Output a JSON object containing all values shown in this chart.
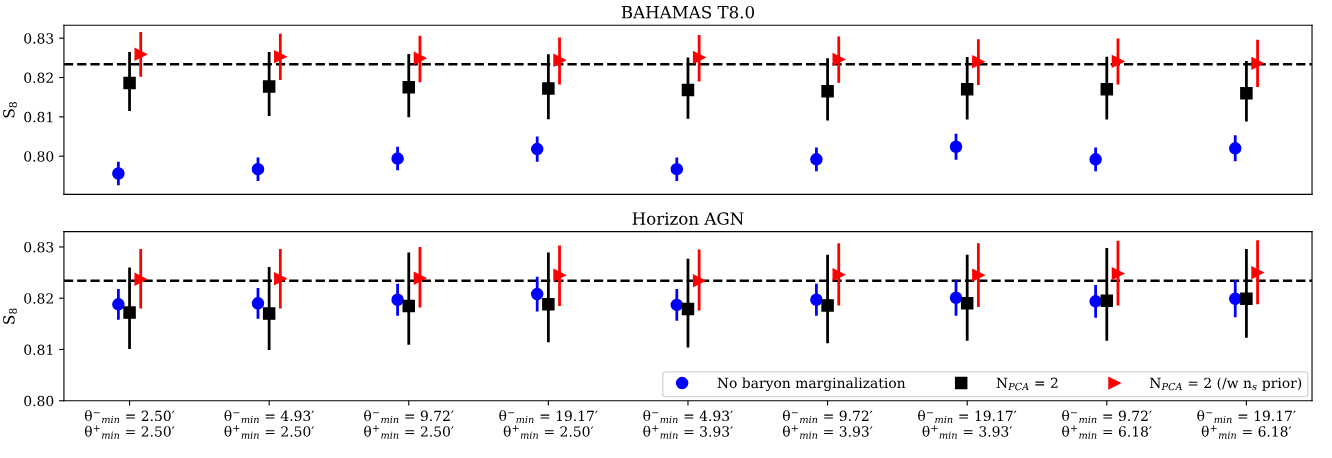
{
  "chart_data": [
    {
      "type": "scatter",
      "title": "BAHAMAS T8.0",
      "ylabel": "S$_{8}$",
      "categories": [
        null,
        null,
        null,
        null,
        null,
        null,
        null,
        null,
        null
      ],
      "series": [
        {
          "color": "#0000ff",
          "marker": "circle",
          "values": [
            0.7956,
            0.7967,
            0.7994,
            0.8018,
            0.7967,
            0.7992,
            0.8024,
            0.7992,
            0.802
          ],
          "errors": [
            0.003,
            0.003,
            0.003,
            0.0032,
            0.003,
            0.003,
            0.0033,
            0.003,
            0.0033
          ]
        },
        {
          "color": "#000000",
          "marker": "square",
          "values": [
            0.8186,
            0.8177,
            0.8175,
            0.8172,
            0.8168,
            0.8165,
            0.817,
            0.817,
            0.816
          ],
          "errors": [
            [
              0.8115,
              0.8265
            ],
            [
              0.8102,
              0.8265
            ],
            [
              0.8099,
              0.826
            ],
            [
              0.8094,
              0.8259
            ],
            [
              0.8095,
              0.8251
            ],
            [
              0.8091,
              0.8249
            ],
            [
              0.8093,
              0.8252
            ],
            [
              0.8093,
              0.8253
            ],
            [
              0.8088,
              0.8242
            ]
          ]
        },
        {
          "color": "#ff0000",
          "marker": "triangle",
          "values": [
            0.8259,
            0.8253,
            0.8249,
            0.8244,
            0.8251,
            0.8246,
            0.824,
            0.8241,
            0.8236
          ],
          "errors": [
            [
              0.8202,
              0.8316
            ],
            [
              0.8194,
              0.8311
            ],
            [
              0.8188,
              0.8306
            ],
            [
              0.8182,
              0.8302
            ],
            [
              0.819,
              0.8308
            ],
            [
              0.8187,
              0.8304
            ],
            [
              0.8181,
              0.8297
            ],
            [
              0.8182,
              0.8299
            ],
            [
              0.8176,
              0.8296
            ]
          ]
        }
      ],
      "ylim": [
        0.7903,
        0.8333
      ],
      "yticks": [
        {
          "value": 0.8,
          "label": "0.80"
        },
        0.81,
        0.82,
        0.83
      ],
      "tick_labels": "y",
      "ref_lines": [
        {
          "axis": "y",
          "value": 0.8234,
          "color": "#000000",
          "line_style": "dashed"
        }
      ]
    },
    {
      "type": "scatter",
      "title": "Horizon AGN",
      "ylabel": "S$_{8}$",
      "categories": [
        "θ$^{−}$$_{min}$ = 2.50′\nθ$^{+}$$_{min}$ = 2.50′",
        "θ$^{−}$$_{min}$ = 4.93′\nθ$^{+}$$_{min}$ = 2.50′",
        "θ$^{−}$$_{min}$ = 9.72′\nθ$^{+}$$_{min}$ = 2.50′",
        "θ$^{−}$$_{min}$ = 19.17′\nθ$^{+}$$_{min}$ = 2.50′",
        "θ$^{−}$$_{min}$ = 4.93′\nθ$^{+}$$_{min}$ = 3.93′",
        "θ$^{−}$$_{min}$ = 9.72′\nθ$^{+}$$_{min}$ = 3.93′",
        "θ$^{−}$$_{min}$ = 19.17′\nθ$^{+}$$_{min}$ = 3.93′",
        "θ$^{−}$$_{min}$ = 9.72′\nθ$^{+}$$_{min}$ = 6.18′",
        "θ$^{−}$$_{min}$ = 19.17′\nθ$^{+}$$_{min}$ = 6.18′"
      ],
      "series": [
        {
          "name": "No baryon marginalization",
          "color": "#0000ff",
          "marker": "circle",
          "values": [
            0.8188,
            0.819,
            0.8197,
            0.8208,
            0.8187,
            0.8197,
            0.8201,
            0.8194,
            0.8199
          ],
          "errors": [
            0.003,
            0.003,
            0.0031,
            0.0034,
            0.0031,
            0.0031,
            0.0035,
            0.0032,
            0.0036
          ]
        },
        {
          "name": "N$_{PCA}$ = 2",
          "color": "#000000",
          "marker": "square",
          "values": [
            0.8172,
            0.817,
            0.8185,
            0.8188,
            0.8179,
            0.8186,
            0.819,
            0.8195,
            0.8199
          ],
          "errors": [
            [
              0.8101,
              0.826
            ],
            [
              0.8099,
              0.8261
            ],
            [
              0.8109,
              0.8289
            ],
            [
              0.8114,
              0.8289
            ],
            [
              0.8104,
              0.8277
            ],
            [
              0.8112,
              0.8285
            ],
            [
              0.8117,
              0.8285
            ],
            [
              0.8117,
              0.8298
            ],
            [
              0.8123,
              0.8296
            ]
          ]
        },
        {
          "name": "N$_{PCA}$ = 2 (/w n$_{s}$ prior)",
          "color": "#ff0000",
          "marker": "triangle",
          "values": [
            0.8237,
            0.8238,
            0.8239,
            0.8245,
            0.8234,
            0.8246,
            0.8245,
            0.8248,
            0.825
          ],
          "errors": [
            [
              0.818,
              0.8296
            ],
            [
              0.818,
              0.8296
            ],
            [
              0.8182,
              0.83
            ],
            [
              0.8185,
              0.8303
            ],
            [
              0.8176,
              0.8295
            ],
            [
              0.8186,
              0.8307
            ],
            [
              0.8183,
              0.8307
            ],
            [
              0.8186,
              0.8312
            ],
            [
              0.8188,
              0.8313
            ]
          ]
        }
      ],
      "ylim": [
        0.8,
        0.833
      ],
      "yticks": [
        {
          "value": 0.8,
          "label": "0.80"
        },
        0.81,
        0.82,
        0.83
      ],
      "ref_lines": [
        {
          "axis": "y",
          "value": 0.8234,
          "color": "#000000",
          "line_style": "dashed"
        }
      ],
      "legend": "lower right"
    }
  ]
}
